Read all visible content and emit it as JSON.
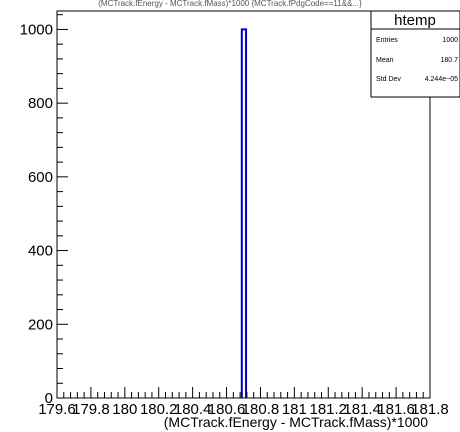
{
  "header": {
    "text": "(MCTrack.fEnergy - MCTrack.fMass)*1000 {MCTrack.fPdgCode==11&&...}"
  },
  "stats": {
    "title": "htemp",
    "rows": [
      {
        "label": "Entries",
        "value": "1000"
      },
      {
        "label": "Mean",
        "value": "180.7"
      },
      {
        "label": "Std Dev",
        "value": "4.244e−05"
      }
    ]
  },
  "chart_data": {
    "type": "bar",
    "title": "htemp",
    "xlabel": "(MCTrack.fEnergy - MCTrack.fMass)*1000",
    "ylabel": "",
    "xlim": [
      179.6,
      181.8
    ],
    "ylim": [
      0,
      1050
    ],
    "x_ticks": [
      "179.6",
      "179.8",
      "180",
      "180.2",
      "180.4",
      "180.6",
      "180.8",
      "181",
      "181.2",
      "181.4",
      "181.6",
      "181.8"
    ],
    "y_ticks": [
      "0",
      "200",
      "400",
      "600",
      "800",
      "1000"
    ],
    "bins": [
      {
        "low": 180.69,
        "high": 180.715,
        "count": 1000
      }
    ],
    "line_color": "#0000cc",
    "grid": false,
    "legend": "top-right"
  }
}
